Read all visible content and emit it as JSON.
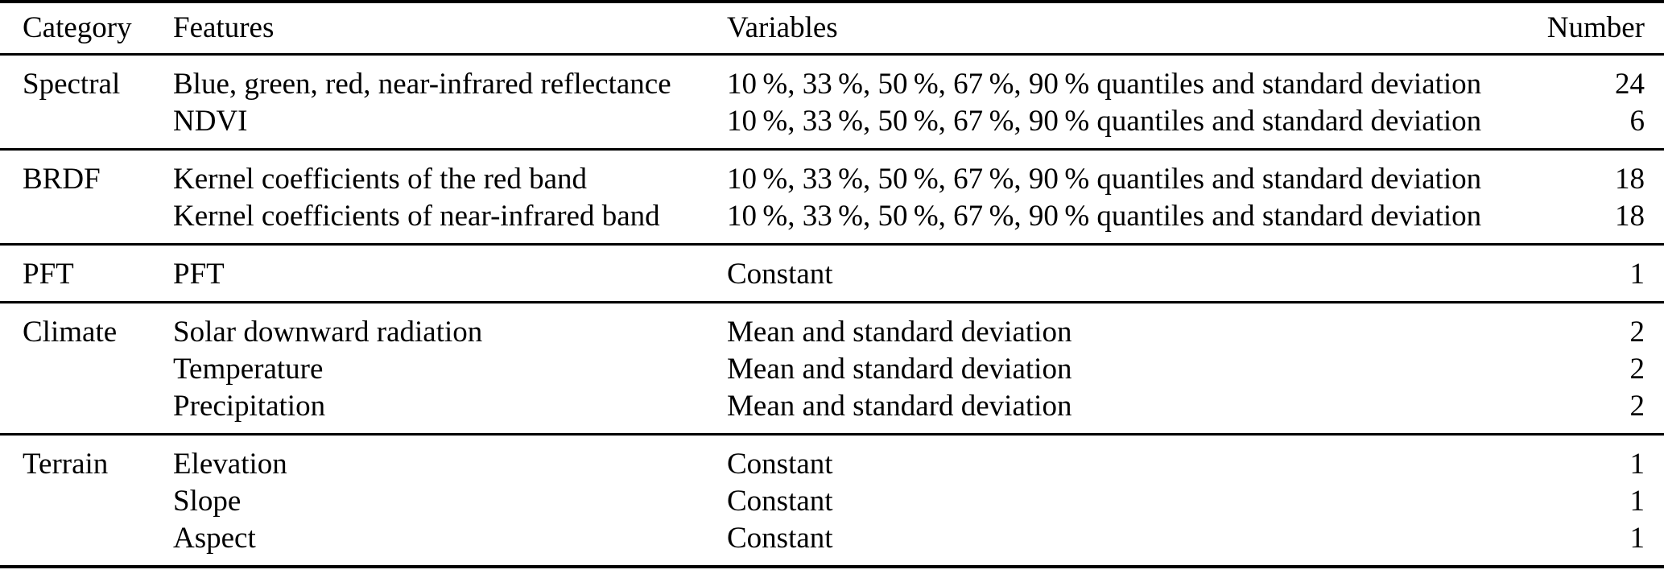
{
  "page": {
    "background_color": "#ffffff",
    "text_color": "#000000",
    "rule_color": "#000000"
  },
  "table": {
    "header": {
      "category": "Category",
      "features": "Features",
      "variables": "Variables",
      "number": "Number"
    },
    "sections": [
      {
        "name": "Spectral",
        "rows": [
          {
            "category": "Spectral",
            "features": "Blue, green, red, near-infrared reflectance",
            "variables": "10 %, 33 %, 50 %, 67 %, 90 % quantiles and standard deviation",
            "number": "24"
          },
          {
            "category": "",
            "features": "NDVI",
            "variables": "10 %, 33 %, 50 %, 67 %, 90 % quantiles and standard deviation",
            "number": "6"
          }
        ]
      },
      {
        "name": "BRDF",
        "rows": [
          {
            "category": "BRDF",
            "features": "Kernel coefficients of the red band",
            "variables": "10 %, 33 %, 50 %, 67 %, 90 % quantiles and standard deviation",
            "number": "18"
          },
          {
            "category": "",
            "features": "Kernel coefficients of near-infrared band",
            "variables": "10 %, 33 %, 50 %, 67 %, 90 % quantiles and standard deviation",
            "number": "18"
          }
        ]
      },
      {
        "name": "PFT",
        "rows": [
          {
            "category": "PFT",
            "features": "PFT",
            "variables": "Constant",
            "number": "1"
          }
        ]
      },
      {
        "name": "Climate",
        "rows": [
          {
            "category": "Climate",
            "features": "Solar downward radiation",
            "variables": "Mean and standard deviation",
            "number": "2"
          },
          {
            "category": "",
            "features": "Temperature",
            "variables": "Mean and standard deviation",
            "number": "2"
          },
          {
            "category": "",
            "features": "Precipitation",
            "variables": "Mean and standard deviation",
            "number": "2"
          }
        ]
      },
      {
        "name": "Terrain",
        "rows": [
          {
            "category": "Terrain",
            "features": "Elevation",
            "variables": "Constant",
            "number": "1"
          },
          {
            "category": "",
            "features": "Slope",
            "variables": "Constant",
            "number": "1"
          },
          {
            "category": "",
            "features": "Aspect",
            "variables": "Constant",
            "number": "1"
          }
        ]
      }
    ]
  }
}
